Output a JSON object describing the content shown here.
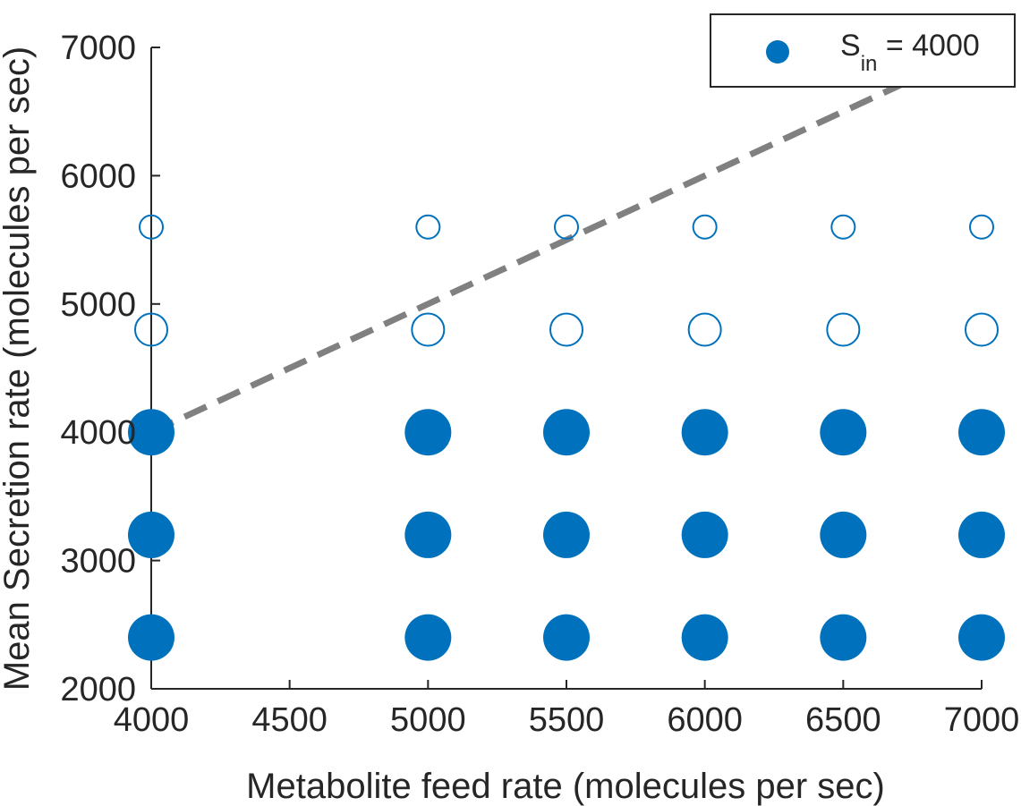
{
  "chart_data": {
    "type": "scatter",
    "xlabel": "Metabolite feed rate (molecules per sec)",
    "ylabel": "Mean Secretion rate (molecules per sec)",
    "xlim": [
      4000,
      7000
    ],
    "ylim": [
      2000,
      7000
    ],
    "xticks": [
      4000,
      4500,
      5000,
      5500,
      6000,
      6500,
      7000
    ],
    "yticks": [
      2000,
      3000,
      4000,
      5000,
      6000,
      7000
    ],
    "grid": false,
    "legend_position": "top-right",
    "legend": {
      "base": "S",
      "sub": "in",
      "rest": " = 4000"
    },
    "colors": {
      "marker": "#0072BD",
      "reference_line": "#808080",
      "axis": "#262626"
    },
    "x_values": [
      4000,
      5000,
      5500,
      6000,
      6500,
      7000
    ],
    "series": [
      {
        "name": "S_in = 4000",
        "marker": "filled",
        "size": "large",
        "y": 2400,
        "points": [
          4000,
          5000,
          5500,
          6000,
          6500,
          7000
        ]
      },
      {
        "name": "S_in = 4000",
        "marker": "filled",
        "size": "large",
        "y": 3200,
        "points": [
          4000,
          5000,
          5500,
          6000,
          6500,
          7000
        ]
      },
      {
        "name": "S_in = 4000",
        "marker": "filled",
        "size": "large",
        "y": 4000,
        "points": [
          4000,
          5000,
          5500,
          6000,
          6500,
          7000
        ]
      },
      {
        "marker": "hollow",
        "size": "medium",
        "y": 4800,
        "points": [
          4000,
          5000,
          5500,
          6000,
          6500,
          7000
        ]
      },
      {
        "marker": "hollow",
        "size": "small",
        "y": 5600,
        "points": [
          4000,
          5000,
          5500,
          6000,
          6500,
          7000
        ]
      }
    ],
    "reference_line": {
      "style": "dashed",
      "from": [
        4000,
        4000
      ],
      "to": [
        7000,
        7000
      ]
    }
  }
}
